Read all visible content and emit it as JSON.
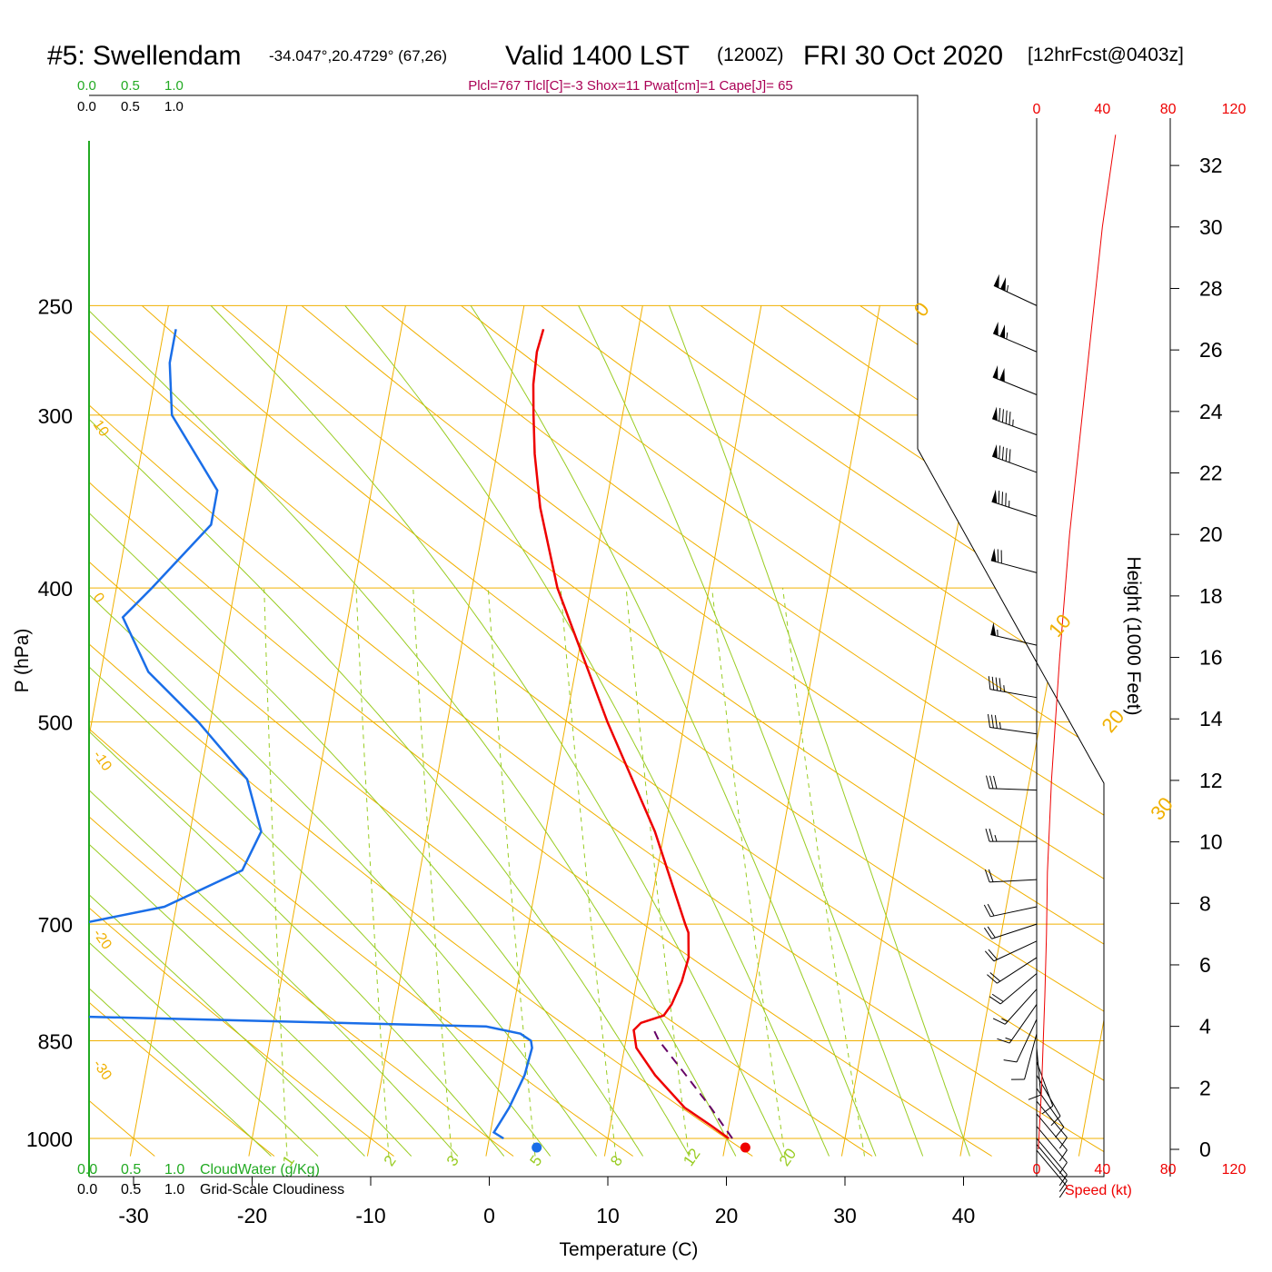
{
  "header": {
    "station": "#5: Swellendam",
    "coords": "-34.047°,20.4729° (67,26)",
    "valid": "Valid 1400 LST",
    "zulu": "(1200Z)",
    "date": "FRI 30 Oct 2020",
    "forecast": "[12hrFcst@0403z]",
    "indices": "Plcl=767 Tlcl[C]=-3 Shox=11 Pwat[cm]=1 Cape[J]= 65"
  },
  "colors": {
    "isotherm": "#f0b000",
    "dry_adiabat": "#f0b000",
    "moist_adiabat": "#99cc22",
    "mixing_ratio": "#99cc22",
    "temperature": "#ee0000",
    "dewpoint": "#1a6ee8",
    "parcel": "#660066",
    "cloud": "#22aa22",
    "speed": "#ee0000",
    "indices_text": "#aa0055"
  },
  "chart_data": {
    "type": "skew-t",
    "xlabel": "Temperature (C)",
    "ylabel": "P (hPa)",
    "right_ylabel": "Height (1000 Feet)",
    "x_ticks": [
      -30,
      -20,
      -10,
      0,
      10,
      20,
      30,
      40
    ],
    "pressure_ticks": [
      250,
      300,
      400,
      500,
      700,
      850,
      1000
    ],
    "height_ticks": [
      0,
      2,
      4,
      6,
      8,
      10,
      12,
      14,
      16,
      18,
      20,
      22,
      24,
      26,
      28,
      30,
      32
    ],
    "mixing_ratio_labels": [
      "1",
      "2",
      "3",
      "5",
      "8",
      "12",
      "20"
    ],
    "moist_labels": [
      {
        "t": 10,
        "text": "10"
      },
      {
        "t": 20,
        "text": "20"
      },
      {
        "t": 30,
        "text": "30"
      }
    ],
    "dry_labels_left": [
      {
        "text": "10",
        "p": 300
      },
      {
        "text": "0",
        "p": 400
      },
      {
        "text": "-10",
        "p": 520
      },
      {
        "text": "-20",
        "p": 700
      },
      {
        "text": "-30",
        "p": 870
      }
    ],
    "moist_upper_label": "0",
    "temperature": [
      [
        1000,
        20.2
      ],
      [
        980,
        18.6
      ],
      [
        950,
        16
      ],
      [
        900,
        13
      ],
      [
        860,
        11
      ],
      [
        835,
        10.5
      ],
      [
        825,
        11
      ],
      [
        815,
        12.8
      ],
      [
        800,
        13.3
      ],
      [
        770,
        13.8
      ],
      [
        740,
        14
      ],
      [
        710,
        13.6
      ],
      [
        700,
        13.2
      ],
      [
        600,
        9.2
      ],
      [
        500,
        3.5
      ],
      [
        400,
        -2.8
      ],
      [
        350,
        -5.5
      ],
      [
        320,
        -6.8
      ],
      [
        300,
        -7.5
      ],
      [
        285,
        -8.0
      ],
      [
        270,
        -8.2
      ],
      [
        260,
        -8.0
      ]
    ],
    "dewpoint": [
      [
        1000,
        1.2
      ],
      [
        990,
        0.3
      ],
      [
        950,
        1.2
      ],
      [
        900,
        2.0
      ],
      [
        860,
        2.2
      ],
      [
        850,
        2.0
      ],
      [
        840,
        1.0
      ],
      [
        830,
        -2
      ],
      [
        815,
        -40
      ],
      [
        790,
        -70
      ],
      [
        740,
        -70
      ],
      [
        720,
        -50
      ],
      [
        700,
        -38
      ],
      [
        680,
        -31
      ],
      [
        640,
        -25
      ],
      [
        600,
        -24
      ],
      [
        550,
        -26
      ],
      [
        500,
        -31
      ],
      [
        460,
        -36
      ],
      [
        420,
        -39
      ],
      [
        400,
        -37
      ],
      [
        360,
        -33
      ],
      [
        340,
        -33
      ],
      [
        300,
        -38
      ],
      [
        275,
        -39
      ],
      [
        260,
        -39
      ]
    ],
    "parcel": [
      [
        1000,
        20.5
      ],
      [
        950,
        18.2
      ],
      [
        900,
        15.6
      ],
      [
        850,
        12.8
      ],
      [
        830,
        12.0
      ]
    ],
    "surface_temp": 21.6,
    "surface_dewpoint": 4.0,
    "winds": [
      {
        "p": 250,
        "dir": 295,
        "spd": 105
      },
      {
        "p": 270,
        "dir": 293,
        "spd": 105
      },
      {
        "p": 290,
        "dir": 292,
        "spd": 100
      },
      {
        "p": 310,
        "dir": 290,
        "spd": 95
      },
      {
        "p": 330,
        "dir": 290,
        "spd": 90
      },
      {
        "p": 355,
        "dir": 288,
        "spd": 85
      },
      {
        "p": 390,
        "dir": 285,
        "spd": 70
      },
      {
        "p": 440,
        "dir": 283,
        "spd": 55
      },
      {
        "p": 480,
        "dir": 280,
        "spd": 45
      },
      {
        "p": 510,
        "dir": 278,
        "spd": 35
      },
      {
        "p": 560,
        "dir": 272,
        "spd": 30
      },
      {
        "p": 610,
        "dir": 270,
        "spd": 25
      },
      {
        "p": 650,
        "dir": 267,
        "spd": 20
      },
      {
        "p": 680,
        "dir": 258,
        "spd": 20
      },
      {
        "p": 700,
        "dir": 252,
        "spd": 20
      },
      {
        "p": 720,
        "dir": 245,
        "spd": 20
      },
      {
        "p": 740,
        "dir": 237,
        "spd": 20
      },
      {
        "p": 760,
        "dir": 230,
        "spd": 20
      },
      {
        "p": 780,
        "dir": 222,
        "spd": 15
      },
      {
        "p": 800,
        "dir": 215,
        "spd": 15
      },
      {
        "p": 820,
        "dir": 205,
        "spd": 10
      },
      {
        "p": 840,
        "dir": 195,
        "spd": 10
      },
      {
        "p": 860,
        "dir": 175,
        "spd": 10
      },
      {
        "p": 880,
        "dir": 160,
        "spd": 10
      },
      {
        "p": 900,
        "dir": 150,
        "spd": 10
      },
      {
        "p": 920,
        "dir": 145,
        "spd": 10
      },
      {
        "p": 940,
        "dir": 140,
        "spd": 10
      },
      {
        "p": 960,
        "dir": 140,
        "spd": 10
      },
      {
        "p": 980,
        "dir": 140,
        "spd": 10
      },
      {
        "p": 1000,
        "dir": 140,
        "spd": 10
      },
      {
        "p": 1010,
        "dir": 140,
        "spd": 10
      },
      {
        "p": 1020,
        "dir": 140,
        "spd": 10
      }
    ],
    "speed_profile": [
      [
        0,
        1
      ],
      [
        2,
        3
      ],
      [
        5,
        5
      ],
      [
        7,
        6
      ],
      [
        9,
        6.5
      ],
      [
        12,
        9
      ],
      [
        16,
        14
      ],
      [
        20,
        20
      ],
      [
        24,
        28
      ],
      [
        28,
        36
      ],
      [
        30,
        40
      ],
      [
        33,
        48
      ]
    ],
    "speed_ticks": [
      "0",
      "40",
      "80",
      "120"
    ],
    "speed_label": "Speed (kt)",
    "cloud_scale": [
      "0.0",
      "0.5",
      "1.0"
    ],
    "cloud_water_label": "CloudWater (g/Kg)",
    "cloudiness_label": "Grid-Scale Cloudiness"
  }
}
